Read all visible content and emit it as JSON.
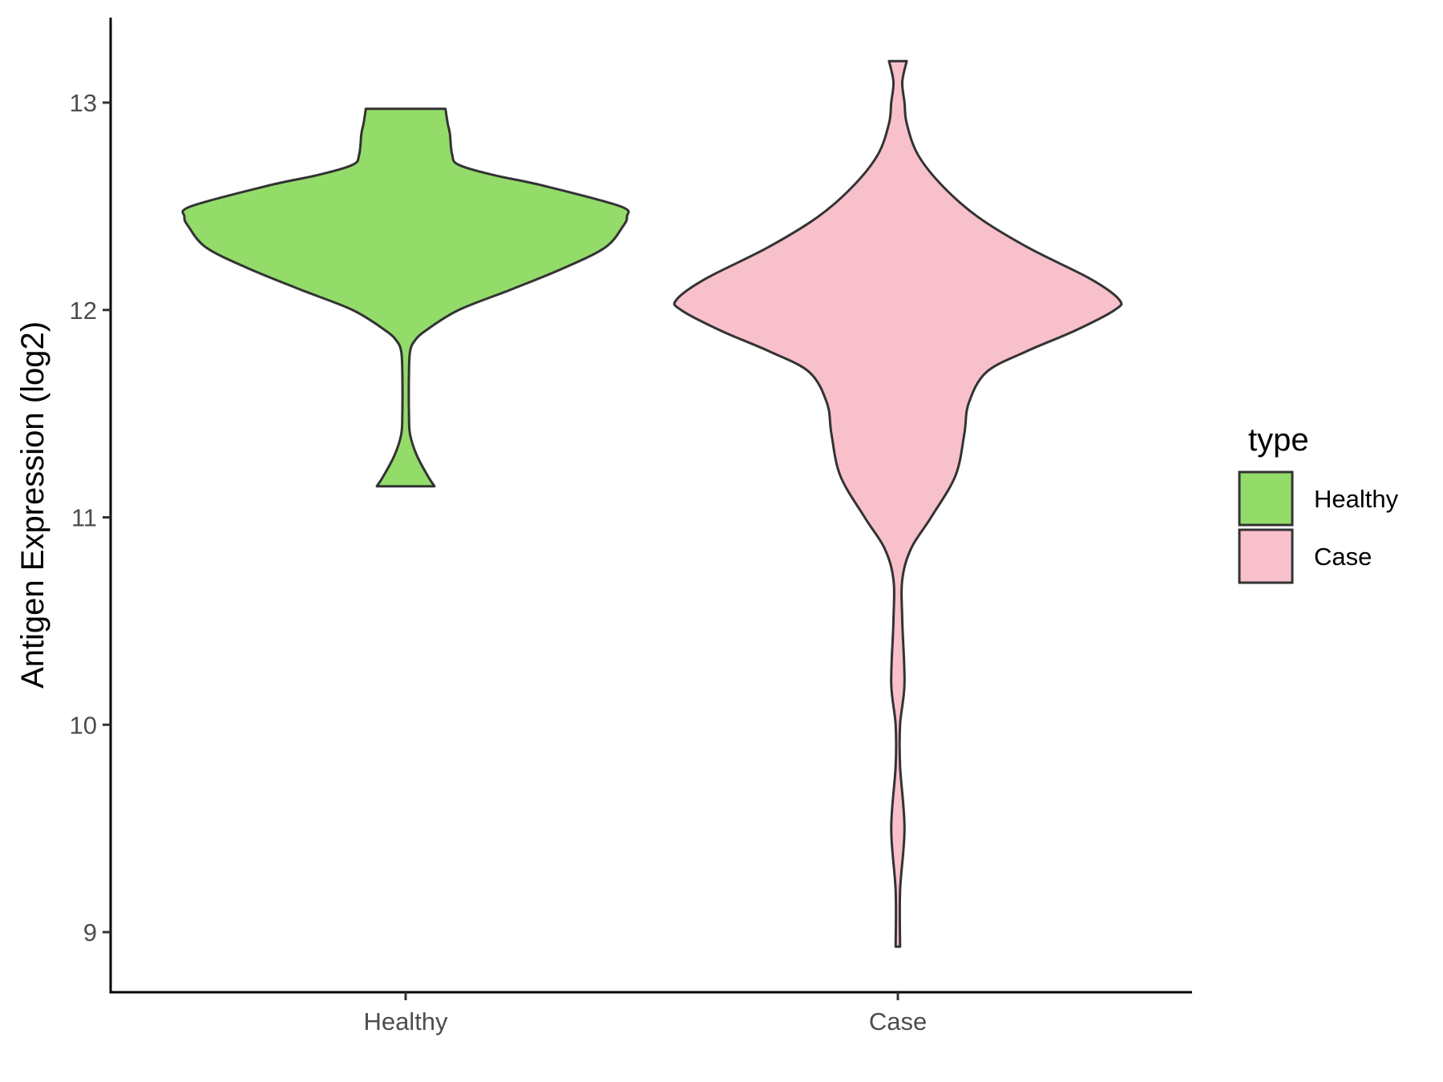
{
  "chart_data": {
    "type": "violin",
    "title": "",
    "xlabel": "",
    "ylabel": "Antigen Expression (log2)",
    "ylim": [
      8.7,
      13.4
    ],
    "y_ticks": [
      9,
      10,
      11,
      12,
      13
    ],
    "y_tick_labels": [
      "9",
      "10",
      "11",
      "12",
      "13"
    ],
    "categories": [
      "Healthy",
      "Case"
    ],
    "grid": false,
    "legend": {
      "title": "type",
      "position": "right",
      "items": [
        {
          "label": "Healthy",
          "color": "#93dc6a"
        },
        {
          "label": "Case",
          "color": "#f8c0cb"
        }
      ]
    },
    "series": [
      {
        "name": "Healthy",
        "color": "#93dc6a",
        "min": 11.15,
        "max": 12.97,
        "density_profile": [
          [
            11.15,
            0.13
          ],
          [
            11.2,
            0.1
          ],
          [
            11.3,
            0.05
          ],
          [
            11.4,
            0.02
          ],
          [
            11.5,
            0.015
          ],
          [
            11.7,
            0.015
          ],
          [
            11.8,
            0.02
          ],
          [
            11.85,
            0.04
          ],
          [
            11.9,
            0.09
          ],
          [
            12.0,
            0.24
          ],
          [
            12.1,
            0.48
          ],
          [
            12.2,
            0.71
          ],
          [
            12.3,
            0.9
          ],
          [
            12.4,
            0.98
          ],
          [
            12.45,
            1.0
          ],
          [
            12.5,
            0.97
          ],
          [
            12.6,
            0.62
          ],
          [
            12.65,
            0.4
          ],
          [
            12.7,
            0.24
          ],
          [
            12.75,
            0.21
          ],
          [
            12.85,
            0.2
          ],
          [
            12.9,
            0.19
          ],
          [
            12.97,
            0.18
          ]
        ]
      },
      {
        "name": "Case",
        "color": "#f8c0cb",
        "min": 8.93,
        "max": 13.2,
        "density_profile": [
          [
            8.93,
            0.01
          ],
          [
            9.2,
            0.01
          ],
          [
            9.5,
            0.03
          ],
          [
            9.8,
            0.01
          ],
          [
            10.0,
            0.01
          ],
          [
            10.2,
            0.03
          ],
          [
            10.5,
            0.02
          ],
          [
            10.7,
            0.02
          ],
          [
            10.85,
            0.06
          ],
          [
            11.0,
            0.15
          ],
          [
            11.2,
            0.26
          ],
          [
            11.4,
            0.3
          ],
          [
            11.55,
            0.32
          ],
          [
            11.7,
            0.4
          ],
          [
            11.8,
            0.58
          ],
          [
            11.9,
            0.8
          ],
          [
            12.0,
            0.98
          ],
          [
            12.05,
            1.0
          ],
          [
            12.15,
            0.87
          ],
          [
            12.3,
            0.59
          ],
          [
            12.45,
            0.36
          ],
          [
            12.6,
            0.2
          ],
          [
            12.75,
            0.09
          ],
          [
            12.9,
            0.04
          ],
          [
            13.0,
            0.03
          ],
          [
            13.1,
            0.02
          ],
          [
            13.2,
            0.04
          ]
        ]
      }
    ]
  }
}
